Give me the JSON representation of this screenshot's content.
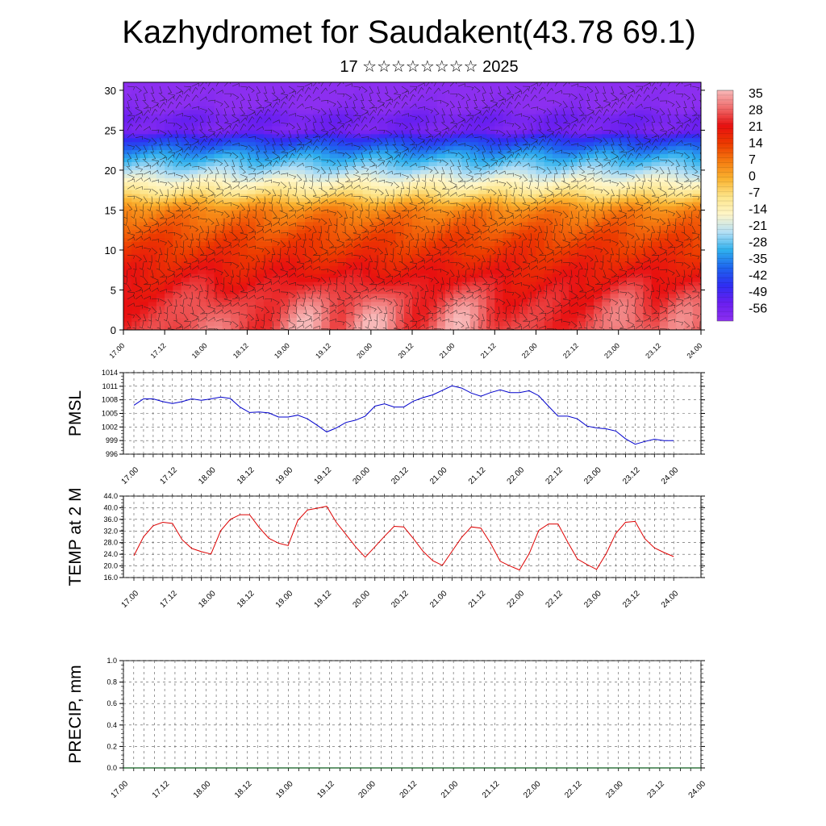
{
  "header": {
    "title": "Kazhydromet for Saudakent(43.78 69.1)",
    "subtitle": "17 ☆☆☆☆☆☆☆☆ 2025"
  },
  "chart_data": [
    {
      "type": "heatmap",
      "name": "vertical-cross-section",
      "xlabel": "",
      "ylabel": "",
      "ylim": [
        0,
        31
      ],
      "y_ticks": [
        0,
        5,
        10,
        15,
        20,
        25,
        30
      ],
      "x_tick_labels": [
        "17.00",
        "17.12",
        "18.00",
        "18.12",
        "19.00",
        "19.12",
        "20.00",
        "20.12",
        "21.00",
        "21.12",
        "22.00",
        "22.12",
        "23.00",
        "23.12",
        "24.00"
      ],
      "overlay": "wind barbs",
      "colorbar": {
        "labels": [
          "35",
          "28",
          "21",
          "14",
          "7",
          "0",
          "-7",
          "-14",
          "-21",
          "-28",
          "-35",
          "-42",
          "-49",
          "-56"
        ],
        "colors": [
          "#f8b9b9",
          "#ef6a6a",
          "#e81010",
          "#ec3a00",
          "#f57c10",
          "#fab330",
          "#fde58a",
          "#fff6c8",
          "#b4dff5",
          "#2fb1ee",
          "#1e64ee",
          "#2f2ef2",
          "#6a1ff0",
          "#8c2ff0"
        ],
        "placement": "right"
      },
      "profile": [
        {
          "height": 0,
          "temp": 24
        },
        {
          "height": 4,
          "temp": 22
        },
        {
          "height": 8,
          "temp": 18
        },
        {
          "height": 12,
          "temp": 12
        },
        {
          "height": 15,
          "temp": 6
        },
        {
          "height": 17,
          "temp": -6
        },
        {
          "height": 18.5,
          "temp": -14
        },
        {
          "height": 20,
          "temp": -22
        },
        {
          "height": 22,
          "temp": -30
        },
        {
          "height": 24,
          "temp": -42
        },
        {
          "height": 25,
          "temp": -52
        },
        {
          "height": 26.5,
          "temp": -50
        },
        {
          "height": 28,
          "temp": -56
        },
        {
          "height": 31,
          "temp": -58
        }
      ],
      "warm_spots": [
        {
          "t": 1.0,
          "temp": 30
        },
        {
          "t": 2.2,
          "temp": 34
        },
        {
          "t": 3.0,
          "temp": 35
        },
        {
          "t": 4.1,
          "temp": 34
        },
        {
          "t": 6.1,
          "temp": 31
        },
        {
          "t": 6.8,
          "temp": 30
        }
      ]
    },
    {
      "type": "line",
      "name": "pmsl",
      "ylabel": "PMSL",
      "ylim": [
        996,
        1014
      ],
      "y_ticks": [
        996,
        999,
        1002,
        1005,
        1008,
        1011,
        1014
      ],
      "x_tick_labels": [
        "17.00",
        "17.12",
        "18.00",
        "18.12",
        "19.00",
        "19.12",
        "20.00",
        "20.12",
        "21.00",
        "21.12",
        "22.00",
        "22.12",
        "23.00",
        "23.12",
        "24.00"
      ],
      "color": "#0000cc",
      "series": [
        {
          "x_step_hours": 3,
          "values": [
            1006.8,
            1008.2,
            1008.2,
            1007.6,
            1007.2,
            1007.6,
            1008.2,
            1007.9,
            1008.2,
            1008.6,
            1008.3,
            1006.4,
            1005.2,
            1005.3,
            1005.1,
            1004.2,
            1004.2,
            1004.6,
            1003.8,
            1002.4,
            1000.9,
            1001.8,
            1003.0,
            1003.5,
            1004.4,
            1006.6,
            1007.1,
            1006.4,
            1006.4,
            1007.7,
            1008.5,
            1009.1,
            1010.1,
            1011.1,
            1010.6,
            1009.5,
            1008.8,
            1009.6,
            1010.2,
            1009.6,
            1009.6,
            1010.0,
            1008.9,
            1006.6,
            1004.4,
            1004.4,
            1003.8,
            1002.2,
            1001.8,
            1001.6,
            1001.1,
            999.4,
            998.2,
            998.8,
            999.3,
            999.0,
            999.0
          ]
        }
      ]
    },
    {
      "type": "line",
      "name": "temp-2m",
      "ylabel": "TEMP at 2 M",
      "ylim": [
        16.0,
        44.0
      ],
      "y_ticks": [
        16.0,
        20.0,
        24.0,
        28.0,
        32.0,
        36.0,
        40.0,
        44.0
      ],
      "x_tick_labels": [
        "17.00",
        "17.12",
        "18.00",
        "18.12",
        "19.00",
        "19.12",
        "20.00",
        "20.12",
        "21.00",
        "21.12",
        "22.00",
        "22.12",
        "23.00",
        "23.12",
        "24.00"
      ],
      "color": "#dd0000",
      "series": [
        {
          "x_step_hours": 3,
          "values": [
            23.5,
            30.0,
            33.8,
            35.0,
            34.6,
            29.0,
            26.0,
            24.9,
            24.1,
            32.1,
            36.0,
            37.6,
            37.6,
            33.2,
            29.5,
            27.8,
            27.0,
            35.6,
            39.2,
            39.8,
            40.5,
            35.0,
            30.8,
            26.6,
            23.0,
            26.6,
            30.2,
            33.6,
            33.4,
            29.4,
            25.0,
            21.8,
            20.2,
            25.0,
            29.8,
            33.4,
            33.0,
            27.8,
            21.6,
            20.0,
            18.6,
            24.2,
            32.2,
            34.4,
            34.4,
            28.2,
            22.4,
            20.5,
            18.8,
            24.2,
            31.2,
            35.0,
            35.3,
            29.4,
            26.2,
            24.6,
            23.2
          ]
        }
      ]
    },
    {
      "type": "bar",
      "name": "precip",
      "ylabel": "PRECIP, mm",
      "ylim": [
        0.0,
        1.0
      ],
      "y_ticks": [
        0.0,
        0.2,
        0.4,
        0.6,
        0.8,
        1.0
      ],
      "x_tick_labels": [
        "17.00",
        "17.12",
        "18.00",
        "18.12",
        "19.00",
        "19.12",
        "20.00",
        "20.12",
        "21.00",
        "21.12",
        "22.00",
        "22.12",
        "23.00",
        "23.12",
        "24.00"
      ],
      "values": []
    }
  ]
}
